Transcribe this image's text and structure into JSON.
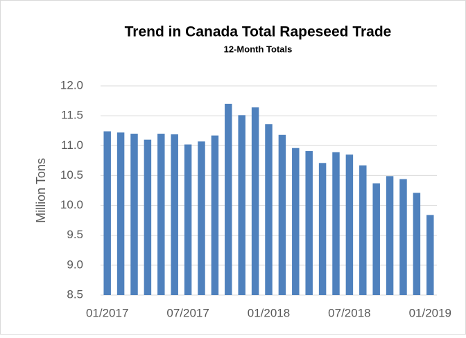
{
  "chart_data": {
    "type": "bar",
    "title": "Trend in Canada Total Rapeseed Trade",
    "subtitle": "12-Month Totals",
    "y_label": "Million Tons",
    "categories": [
      "01/2017",
      null,
      null,
      null,
      null,
      null,
      "07/2017",
      null,
      null,
      null,
      null,
      null,
      "01/2018",
      null,
      null,
      null,
      null,
      null,
      "07/2018",
      null,
      null,
      null,
      null,
      null,
      "01/2019"
    ],
    "values": [
      11.24,
      11.22,
      11.2,
      11.1,
      11.2,
      11.19,
      11.02,
      11.07,
      11.17,
      11.7,
      11.51,
      11.64,
      11.36,
      11.18,
      10.96,
      10.91,
      10.71,
      10.89,
      10.85,
      10.67,
      10.37,
      10.49,
      10.44,
      10.21,
      9.84
    ],
    "color": "#4f81bd",
    "ylim": [
      8.5,
      12.0
    ],
    "yticks": [
      {
        "value": 8.5,
        "label": "8.5"
      },
      {
        "value": 9.0,
        "label": "9.0"
      },
      {
        "value": 9.5,
        "label": "9.5"
      },
      {
        "value": 10.0,
        "label": "10.0"
      },
      {
        "value": 10.5,
        "label": "10.5"
      },
      {
        "value": 11.0,
        "label": "11.0"
      },
      {
        "value": 11.5,
        "label": "11.5"
      },
      {
        "value": 12.0,
        "label": "12.0"
      }
    ],
    "grid": true
  }
}
